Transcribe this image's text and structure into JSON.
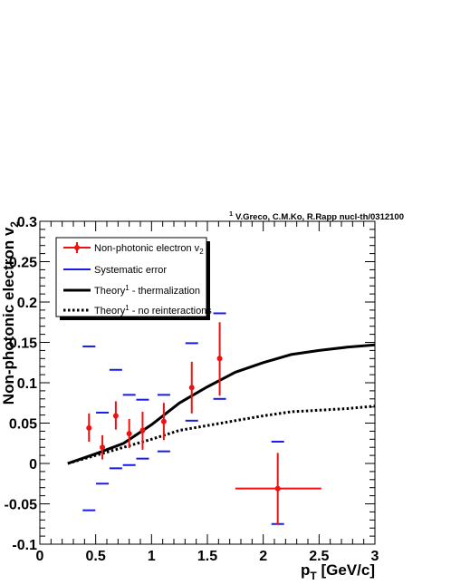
{
  "chart_data": {
    "type": "scatter",
    "annotation": {
      "superscript": "1",
      "text": "V.Greco, C.M.Ko, R.Rapp nucl-th/0312100"
    },
    "xlabel": {
      "main": "p",
      "sub": "T",
      "rest": " [GeV/c]"
    },
    "ylabel": {
      "main": "Non-photonic electron v",
      "sub": "2"
    },
    "xlim": [
      0,
      3
    ],
    "ylim": [
      -0.1,
      0.3
    ],
    "xticks": [
      0,
      0.5,
      1,
      1.5,
      2,
      2.5,
      3
    ],
    "xtick_labels": [
      "0",
      "0.5",
      "1",
      "1.5",
      "2",
      "2.5",
      "3"
    ],
    "yticks": [
      -0.1,
      -0.05,
      0,
      0.05,
      0.1,
      0.15,
      0.2,
      0.25,
      0.3
    ],
    "ytick_labels": [
      "-0.1",
      "-0.05",
      "0",
      "0.05",
      "0.1",
      "0.15",
      "0.2",
      "0.25",
      "0.3"
    ],
    "grid": false,
    "legend_position": "top-left",
    "legend": [
      {
        "label": "Non-photonic electron v",
        "sub": "2",
        "sup": "",
        "tail": "",
        "style": "marker",
        "color": "#ee1111"
      },
      {
        "label": "Systematic error",
        "sub": "",
        "sup": "",
        "tail": "",
        "style": "blue-dash",
        "color": "#1a1ae6"
      },
      {
        "label": "Theory",
        "sub": "",
        "sup": "1",
        "tail": " - thermalization",
        "style": "solid",
        "color": "#000000"
      },
      {
        "label": "Theory",
        "sub": "",
        "sup": "1",
        "tail": " - no reinteractions",
        "style": "dotted",
        "color": "#000000"
      }
    ],
    "series": [
      {
        "name": "Non-photonic electron v2",
        "color": "#ee1111",
        "points": [
          {
            "x": 0.44,
            "y": 0.044,
            "ylo": 0.027,
            "yhi": 0.062
          },
          {
            "x": 0.56,
            "y": 0.02,
            "ylo": 0.005,
            "yhi": 0.035
          },
          {
            "x": 0.68,
            "y": 0.059,
            "ylo": 0.042,
            "yhi": 0.077
          },
          {
            "x": 0.8,
            "y": 0.037,
            "ylo": 0.019,
            "yhi": 0.055
          },
          {
            "x": 0.92,
            "y": 0.041,
            "ylo": 0.017,
            "yhi": 0.064
          },
          {
            "x": 1.11,
            "y": 0.052,
            "ylo": 0.029,
            "yhi": 0.075
          },
          {
            "x": 1.36,
            "y": 0.094,
            "ylo": 0.062,
            "yhi": 0.126
          },
          {
            "x": 1.61,
            "y": 0.13,
            "ylo": 0.084,
            "yhi": 0.175
          },
          {
            "x": 2.13,
            "y": -0.031,
            "ylo": -0.076,
            "yhi": 0.013,
            "xlo": 1.75,
            "xhi": 2.52
          }
        ]
      },
      {
        "name": "Systematic error",
        "color": "#1a1ae6",
        "dashes": [
          {
            "x": 0.44,
            "lo": -0.058,
            "hi": 0.145
          },
          {
            "x": 0.56,
            "lo": -0.025,
            "hi": 0.063
          },
          {
            "x": 0.68,
            "lo": -0.006,
            "hi": 0.116
          },
          {
            "x": 0.8,
            "lo": -0.002,
            "hi": 0.085
          },
          {
            "x": 0.92,
            "lo": 0.006,
            "hi": 0.079
          },
          {
            "x": 1.11,
            "lo": 0.015,
            "hi": 0.085
          },
          {
            "x": 1.36,
            "lo": 0.053,
            "hi": 0.149
          },
          {
            "x": 1.61,
            "lo": 0.08,
            "hi": 0.186
          },
          {
            "x": 2.13,
            "lo": -0.075,
            "hi": 0.027
          }
        ]
      },
      {
        "name": "Theory1 - thermalization",
        "color": "#000000",
        "style": "solid",
        "x": [
          0.25,
          0.5,
          0.75,
          1.0,
          1.25,
          1.5,
          1.75,
          2.0,
          2.25,
          2.5,
          2.75,
          3.0
        ],
        "y": [
          0.0,
          0.012,
          0.025,
          0.048,
          0.075,
          0.095,
          0.113,
          0.125,
          0.135,
          0.14,
          0.144,
          0.147
        ]
      },
      {
        "name": "Theory1 - no reinteractions",
        "color": "#000000",
        "style": "dotted",
        "x": [
          0.25,
          0.5,
          0.75,
          1.0,
          1.25,
          1.5,
          1.75,
          2.0,
          2.25,
          2.5,
          2.75,
          3.0
        ],
        "y": [
          0.0,
          0.01,
          0.02,
          0.03,
          0.041,
          0.047,
          0.053,
          0.059,
          0.064,
          0.066,
          0.068,
          0.071
        ]
      }
    ]
  }
}
